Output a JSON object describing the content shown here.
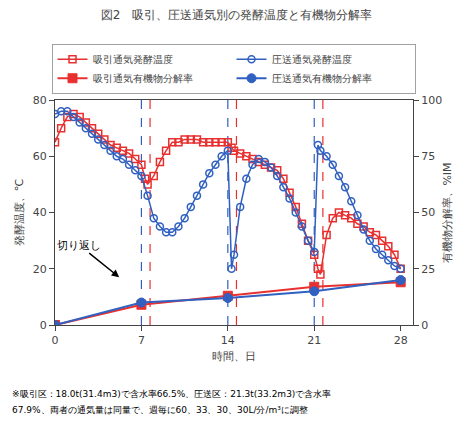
{
  "chart_data": {
    "type": "line",
    "title": "図2　吸引、圧送通気別の発酵温度と有機物分解率",
    "xlabel": "時間、日",
    "ylabel": "発酵温度、℃",
    "y2label": "有機物分解率、%IM",
    "xlim": [
      0,
      29
    ],
    "xticks": [
      0,
      7,
      14,
      21,
      28
    ],
    "ylim": [
      0,
      80
    ],
    "yticks": [
      0,
      20,
      40,
      60,
      80
    ],
    "y2lim": [
      0,
      100
    ],
    "y2ticks": [
      0,
      25,
      50,
      75,
      100
    ],
    "grid": false,
    "legend": "top",
    "series": [
      {
        "name": "吸引通気発酵温度",
        "color": "#e83030",
        "marker": "square-open",
        "line_style": "solid",
        "x": [
          0,
          0.5,
          1,
          1.5,
          2,
          2.5,
          3,
          3.5,
          4,
          4.5,
          5,
          5.5,
          6,
          6.5,
          7,
          7.3,
          7.5,
          8,
          8.5,
          9,
          9.5,
          10,
          10.5,
          11,
          11.5,
          12,
          12.5,
          13,
          13.5,
          14,
          14.3,
          14.5,
          15,
          15.5,
          16,
          16.5,
          17,
          17.5,
          18,
          18.5,
          19,
          19.5,
          20,
          20.5,
          21,
          21.3,
          21.5,
          22,
          22.5,
          23,
          23.5,
          24,
          24.5,
          25,
          25.5,
          26,
          26.5,
          27,
          27.5,
          28
        ],
        "values": [
          65,
          70,
          74,
          75,
          74,
          72,
          70,
          68,
          66,
          64,
          63,
          62,
          61,
          59,
          57,
          52,
          50,
          53,
          58,
          62,
          65,
          65,
          66,
          66,
          66,
          65,
          65,
          65,
          65,
          65,
          63,
          62,
          61,
          60,
          59,
          58,
          57,
          56,
          55,
          52,
          47,
          42,
          36,
          30,
          25,
          20,
          18,
          32,
          38,
          40,
          39,
          38,
          36,
          35,
          33,
          32,
          30,
          28,
          25,
          20
        ]
      },
      {
        "name": "圧送通気発酵温度",
        "color": "#3060c0",
        "marker": "circle-open",
        "line_style": "solid",
        "x": [
          0,
          0.5,
          1,
          1.5,
          2,
          2.5,
          3,
          3.5,
          4,
          4.5,
          5,
          5.5,
          6,
          6.5,
          7,
          7.5,
          8,
          8.5,
          9,
          9.5,
          10,
          10.5,
          11,
          11.5,
          12,
          12.5,
          13,
          13.5,
          14,
          14.3,
          14.5,
          15,
          15.5,
          16,
          16.5,
          17,
          17.5,
          18,
          18.5,
          19,
          19.5,
          20,
          20.5,
          21,
          21.3,
          21.5,
          22,
          22.5,
          23,
          23.5,
          24,
          24.5,
          25,
          25.5,
          26,
          26.5,
          27,
          27.5,
          28
        ],
        "values": [
          75,
          76,
          76,
          74,
          72,
          70,
          68,
          66,
          64,
          62,
          60,
          59,
          57,
          55,
          53,
          46,
          38,
          35,
          33,
          33,
          35,
          38,
          42,
          46,
          50,
          54,
          57,
          60,
          62,
          20,
          25,
          42,
          52,
          57,
          59,
          58,
          56,
          53,
          49,
          45,
          40,
          35,
          30,
          26,
          64,
          62,
          60,
          57,
          53,
          49,
          44,
          39,
          34,
          30,
          27,
          25,
          23,
          21,
          20
        ]
      },
      {
        "name": "吸引通気有機物分解率",
        "color": "#e83030",
        "marker": "square",
        "line_style": "solid",
        "axis": "y2",
        "x": [
          0,
          7,
          14,
          21,
          28
        ],
        "values": [
          0,
          9,
          13,
          17,
          19
        ]
      },
      {
        "name": "圧送通気有機物分解率",
        "color": "#3060c0",
        "marker": "circle",
        "line_style": "solid",
        "axis": "y2",
        "x": [
          0,
          7,
          14,
          21,
          28
        ],
        "values": [
          0,
          10,
          12,
          15,
          20
        ]
      }
    ],
    "vlines": [
      {
        "values": [
          7,
          14,
          21
        ],
        "color": "#3060c0",
        "line_style": "dashed"
      },
      {
        "values": [
          7.7,
          14.7,
          21.7
        ],
        "color": "#e83030",
        "line_style": "dashed"
      }
    ],
    "annotations": [
      {
        "text": "切り返し",
        "x": 5.2,
        "y": 17
      }
    ],
    "footnotes": [
      "※吸引区：18.0t(31.4m3)で含水率66.5%、圧送区：21.3t(33.2m3)で含水率",
      "67.9%、両者の通気量は同量で、週毎に60、33、30、30L/分/m³に調整"
    ]
  }
}
